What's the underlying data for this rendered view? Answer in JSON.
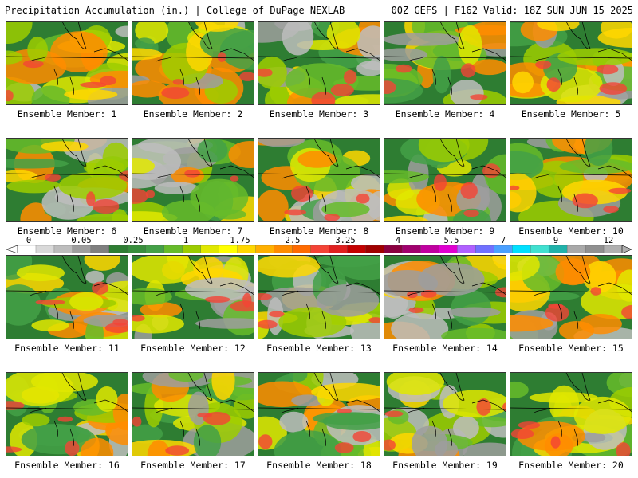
{
  "header": {
    "title_left": "Precipitation Accumulation (in.) | College of DuPage NEXLAB",
    "title_right": "00Z GEFS | F162 Valid: 18Z SUN JUN 15 2025"
  },
  "members": [
    {
      "label": "Ensemble Member: 1"
    },
    {
      "label": "Ensemble Member: 2"
    },
    {
      "label": "Ensemble Member: 3"
    },
    {
      "label": "Ensemble Member: 4"
    },
    {
      "label": "Ensemble Member: 5"
    },
    {
      "label": "Ensemble Member: 6"
    },
    {
      "label": "Ensemble Member: 7"
    },
    {
      "label": "Ensemble Member: 8"
    },
    {
      "label": "Ensemble Member: 9"
    },
    {
      "label": "Ensemble Member: 10"
    },
    {
      "label": "Ensemble Member: 11"
    },
    {
      "label": "Ensemble Member: 12"
    },
    {
      "label": "Ensemble Member: 13"
    },
    {
      "label": "Ensemble Member: 14"
    },
    {
      "label": "Ensemble Member: 15"
    },
    {
      "label": "Ensemble Member: 16"
    },
    {
      "label": "Ensemble Member: 17"
    },
    {
      "label": "Ensemble Member: 18"
    },
    {
      "label": "Ensemble Member: 19"
    },
    {
      "label": "Ensemble Member: 20"
    }
  ],
  "colorbar": {
    "labels": [
      "0",
      "0.05",
      "0.25",
      "1",
      "1.75",
      "2.5",
      "3.25",
      "4",
      "5.5",
      "7",
      "9",
      "12"
    ],
    "colors": [
      "#ffffff",
      "#d9d9d9",
      "#bdbdbd",
      "#9e9e9e",
      "#7f7f7f",
      "#2e7d32",
      "#388e3c",
      "#43a047",
      "#66bb2a",
      "#9ccc00",
      "#e0e800",
      "#ffff00",
      "#ffd700",
      "#ffb000",
      "#ff8c00",
      "#ff6a00",
      "#f44336",
      "#e02020",
      "#c40000",
      "#a00000",
      "#8b0040",
      "#a0006e",
      "#c000a0",
      "#e000d0",
      "#b060ff",
      "#7070ff",
      "#4aa0ff",
      "#00e0ff",
      "#40e0d0",
      "#20b2aa",
      "#a9a9a9",
      "#909090",
      "#b0b0b0"
    ],
    "unit": "in."
  }
}
